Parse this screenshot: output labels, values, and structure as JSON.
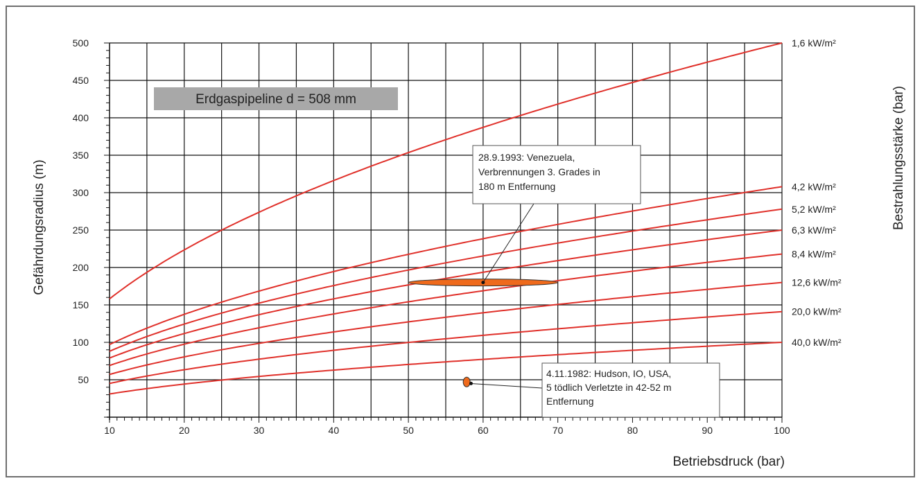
{
  "chart_data": {
    "type": "line",
    "title_box": "Erdgaspipeline d = 508 mm",
    "xlabel": "Betriebsdruck (bar)",
    "ylabel": "Gefährdungsradius (m)",
    "ylabel_right": "Bestrahlungsstärke (bar)",
    "xlim": [
      10,
      100
    ],
    "ylim": [
      0,
      500
    ],
    "x_ticks": [
      10,
      20,
      30,
      40,
      50,
      60,
      70,
      80,
      90,
      100
    ],
    "x_tick_labels": [
      "10",
      "20",
      "30",
      "40",
      "50",
      "60",
      "70",
      "80",
      "90",
      "100"
    ],
    "y_ticks": [
      50,
      100,
      150,
      200,
      250,
      300,
      350,
      400,
      450,
      500
    ],
    "y_tick_labels": [
      "50",
      "100",
      "150",
      "200",
      "250",
      "300",
      "350",
      "400",
      "450",
      "500"
    ],
    "grid": true,
    "series_color": "#e0302a",
    "series": [
      {
        "name": "1,6 kW/m²",
        "x": [
          10,
          100
        ],
        "y": [
          158,
          500
        ],
        "exponent": 0.5
      },
      {
        "name": "4,2 kW/m²",
        "x": [
          10,
          100
        ],
        "y": [
          97,
          308
        ],
        "exponent": 0.5
      },
      {
        "name": "5,2 kW/m²",
        "x": [
          10,
          100
        ],
        "y": [
          88,
          278
        ],
        "exponent": 0.5
      },
      {
        "name": "6,3 kW/m²",
        "x": [
          10,
          100
        ],
        "y": [
          79,
          250
        ],
        "exponent": 0.5
      },
      {
        "name": "8,4 kW/m²",
        "x": [
          10,
          100
        ],
        "y": [
          69,
          218
        ],
        "exponent": 0.5
      },
      {
        "name": "12,6 kW/m²",
        "x": [
          10,
          100
        ],
        "y": [
          57,
          180
        ],
        "exponent": 0.5
      },
      {
        "name": "20,0 kW/m²",
        "x": [
          10,
          100
        ],
        "y": [
          45,
          141
        ],
        "exponent": 0.5
      },
      {
        "name": "40,0 kW/m²",
        "x": [
          10,
          100
        ],
        "y": [
          31,
          100
        ],
        "exponent": 0.5
      }
    ],
    "annotations": [
      {
        "text_lines": [
          "28.9.1993: Venezuela,",
          "Verbrennungen 3. Grades in",
          "180 m Entfernung"
        ],
        "x_range": [
          50,
          70
        ],
        "y": 180,
        "marker": "ellipse",
        "marker_color": "#ef6a1c",
        "point": [
          60,
          180
        ]
      },
      {
        "text_lines": [
          "4.11.1982: Hudson, IO, USA,",
          "5 tödlich Verletzte in 42-52 m",
          "Entfernung"
        ],
        "x_range": [
          57.4,
          58.2
        ],
        "y": 47,
        "marker": "ellipse",
        "marker_color": "#ef6a1c",
        "point": [
          58.2,
          45
        ]
      }
    ]
  }
}
